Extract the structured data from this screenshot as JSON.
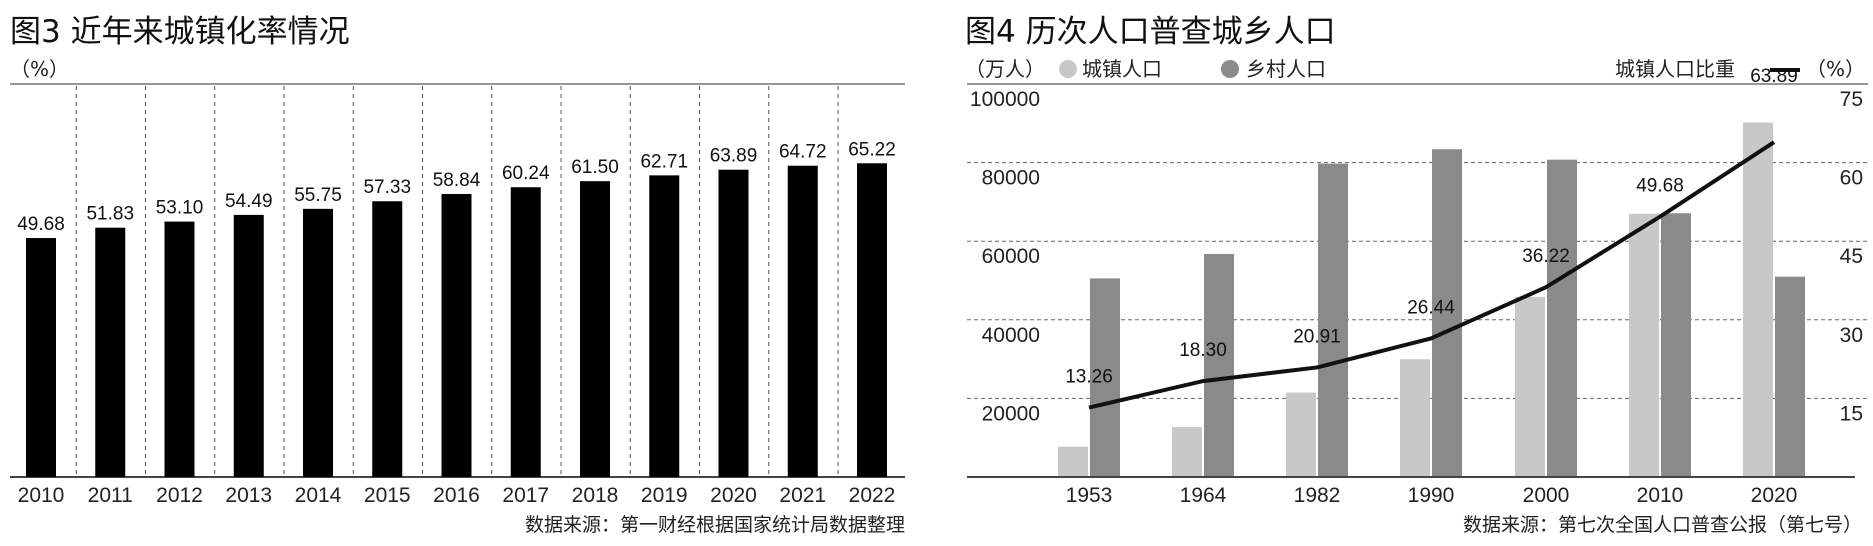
{
  "chart_data": [
    {
      "type": "bar",
      "title": "图3 近年来城镇化率情况",
      "ylabel": "（%）",
      "source": "数据来源：第一财经根据国家统计局数据整理",
      "categories": [
        "2010",
        "2011",
        "2012",
        "2013",
        "2014",
        "2015",
        "2016",
        "2017",
        "2018",
        "2019",
        "2020",
        "2021",
        "2022"
      ],
      "values": [
        49.68,
        51.83,
        53.1,
        54.49,
        55.75,
        57.33,
        58.84,
        60.24,
        61.5,
        62.71,
        63.89,
        64.72,
        65.22
      ],
      "value_labels": [
        "49.68",
        "51.83",
        "53.10",
        "54.49",
        "55.75",
        "57.33",
        "58.84",
        "60.24",
        "61.50",
        "62.71",
        "63.89",
        "64.72",
        "65.22"
      ],
      "bar_color": "#000000",
      "grid": "vertical dashed separators"
    },
    {
      "type": "bar+line",
      "title": "图4  历次人口普查城乡人口",
      "ylabel_left": "（万人）",
      "ylabel_right": "（%）",
      "source": "数据来源：第七次全国人口普查公报（第七号）",
      "categories": [
        "1953",
        "1964",
        "1982",
        "1990",
        "2000",
        "2010",
        "2020"
      ],
      "y_left_ticks": [
        "20000",
        "40000",
        "60000",
        "80000",
        "100000"
      ],
      "y_left_range": [
        0,
        100000
      ],
      "y_right_ticks": [
        "15",
        "30",
        "45",
        "60",
        "75"
      ],
      "y_right_range": [
        0,
        75
      ],
      "series": [
        {
          "name": "城镇人口",
          "type": "bar",
          "axis": "left",
          "color": "#c8c8c8",
          "values": [
            7726,
            12710,
            21480,
            29971,
            45844,
            66978,
            90199
          ]
        },
        {
          "name": "乡村人口",
          "type": "bar",
          "axis": "left",
          "color": "#8a8a8a",
          "values": [
            50534,
            56748,
            79736,
            83397,
            80739,
            67113,
            50979
          ]
        },
        {
          "name": "城镇人口比重",
          "type": "line",
          "axis": "right",
          "color": "#111111",
          "values": [
            13.26,
            18.3,
            20.91,
            26.44,
            36.22,
            49.68,
            63.89
          ],
          "value_labels": [
            "13.26",
            "18.30",
            "20.91",
            "26.44",
            "36.22",
            "49.68",
            "63.89"
          ]
        }
      ],
      "grid": "horizontal dashed",
      "legend": "top"
    }
  ]
}
